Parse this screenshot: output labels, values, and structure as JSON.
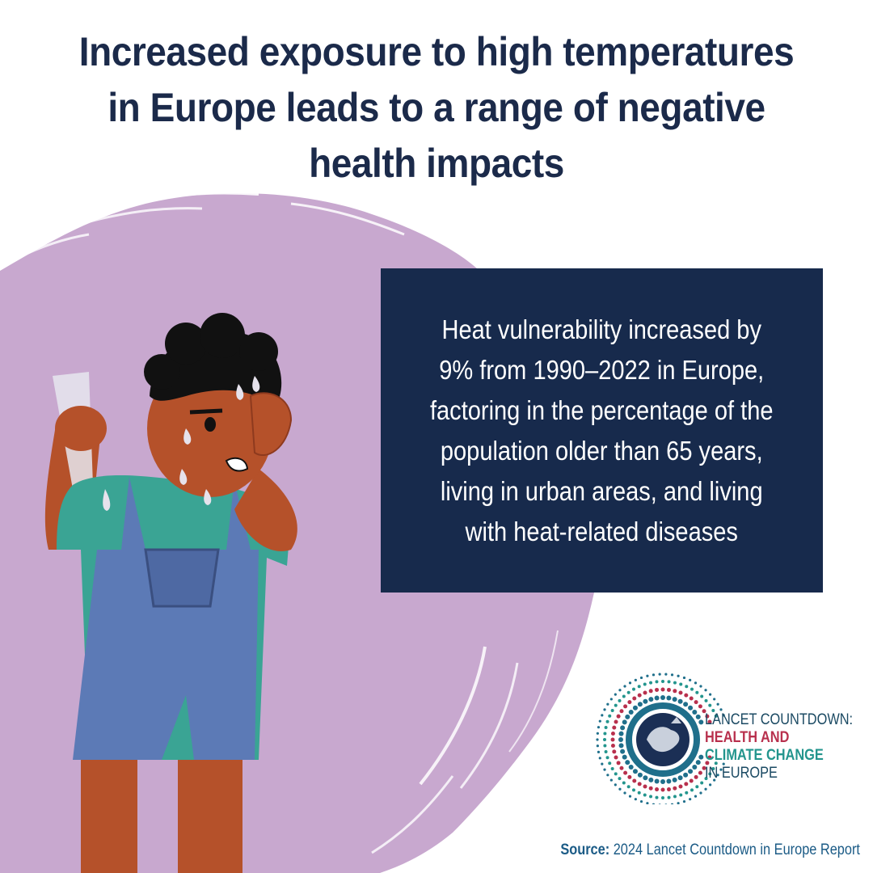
{
  "headline": {
    "line1": "Increased exposure to high temperatures",
    "line2": "in Europe leads to a range of negative",
    "line3": "health impacts"
  },
  "info_box": {
    "line1": "Heat vulnerability increased by",
    "line2": "9% from 1990–2022 in Europe,",
    "line3": "factoring in the percentage of the",
    "line4": "population older than 65 years,",
    "line5": "living in urban areas, and living",
    "line6": "with heat-related diseases"
  },
  "logo": {
    "line1": "LANCET COUNTDOWN:",
    "line2": "HEALTH AND",
    "line3": "CLIMATE CHANGE",
    "line4": "IN EUROPE"
  },
  "source": {
    "label": "Source:",
    "text": "2024 Lancet Countdown in Europe Report"
  },
  "colors": {
    "title": "#1b2a4a",
    "box": "#172a4c",
    "brush": "#c8a8cf",
    "logo_red": "#b8304d",
    "logo_teal": "#23958d",
    "source": "#1b5b86"
  },
  "icons": [
    "sweating-child-illustration",
    "europe-globe-icon",
    "lancet-countdown-logo"
  ]
}
